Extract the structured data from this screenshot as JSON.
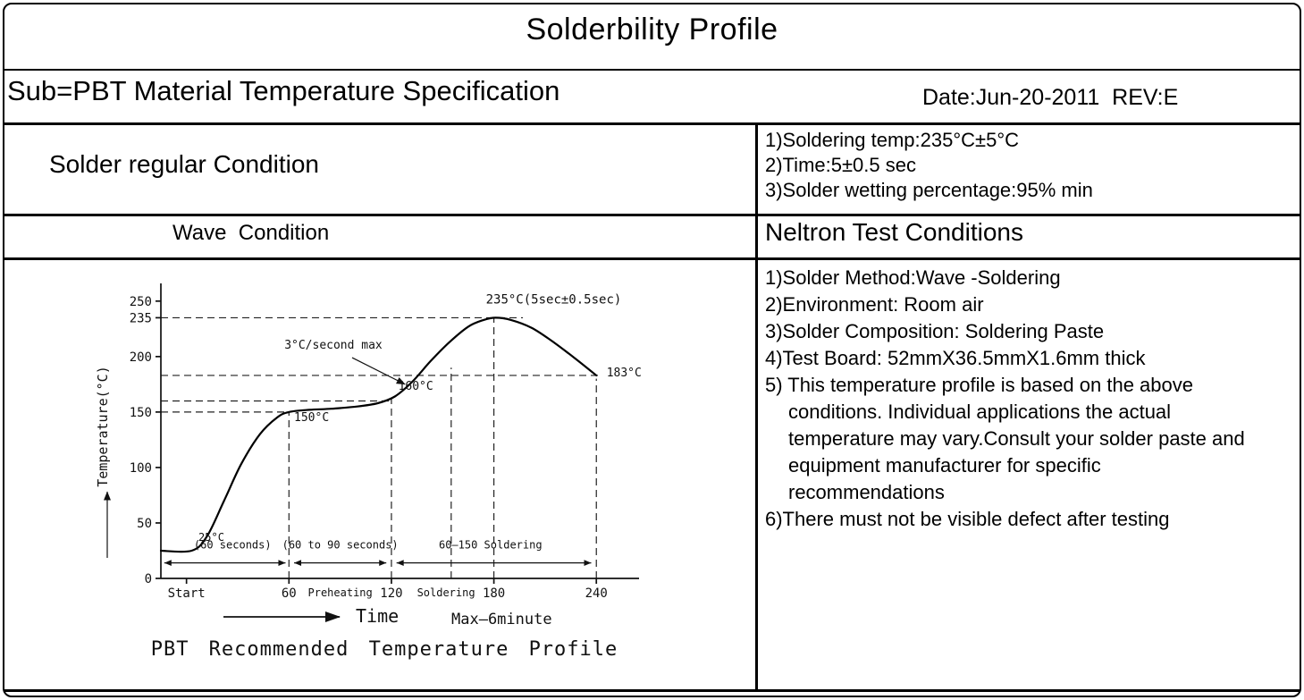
{
  "page": {
    "title": "Solderbility Profile",
    "subtitle": "Sub=PBT Material Temperature Specification",
    "date_rev": "Date:Jun-20-2011  REV:E"
  },
  "conditions": {
    "regular_label": "Solder regular Condition",
    "regular_items": [
      "1)Soldering temp:235°C±5°C",
      "2)Time:5±0.5 sec",
      "3)Solder wetting percentage:95% min"
    ],
    "wave_label": "Wave  Condition",
    "test_header": "Neltron Test Conditions",
    "test_items": [
      "1)Solder Method:Wave -Soldering",
      "2)Environment: Room air",
      "3)Solder Composition: Soldering Paste",
      "4)Test Board: 52mmX36.5mmX1.6mm thick",
      "5) This temperature profile is based on the above conditions. Individual applications the actual temperature may vary.Consult your solder paste and equipment manufacturer for specific recommendations",
      "6)There must not be visible defect after testing"
    ]
  },
  "chart_data": {
    "type": "line",
    "title": "PBT Recommended Temperature Profile",
    "xlabel": "Time",
    "xlabel_note": "Max–6minute",
    "ylabel": "Temperature(°C)",
    "xlim": [
      -15,
      265
    ],
    "ylim": [
      0,
      270
    ],
    "x_ticks": [
      {
        "x": 0,
        "label": "Start"
      },
      {
        "x": 60,
        "label": "60"
      },
      {
        "x": 120,
        "label": "120"
      },
      {
        "x": 180,
        "label": "180"
      },
      {
        "x": 240,
        "label": "240"
      }
    ],
    "zone_labels": [
      {
        "x": 90,
        "label": "Preheating"
      },
      {
        "x": 152,
        "label": "Soldering"
      }
    ],
    "y_ticks": [
      0,
      50,
      100,
      150,
      200,
      235,
      250
    ],
    "curve_points": [
      [
        -15,
        25
      ],
      [
        3,
        25
      ],
      [
        12,
        38
      ],
      [
        22,
        70
      ],
      [
        32,
        103
      ],
      [
        43,
        130
      ],
      [
        53,
        145
      ],
      [
        60,
        150
      ],
      [
        72,
        152
      ],
      [
        85,
        153
      ],
      [
        100,
        155
      ],
      [
        112,
        158
      ],
      [
        122,
        164
      ],
      [
        132,
        177
      ],
      [
        143,
        196
      ],
      [
        154,
        213
      ],
      [
        165,
        227
      ],
      [
        174,
        233
      ],
      [
        181,
        235
      ],
      [
        190,
        233
      ],
      [
        202,
        226
      ],
      [
        214,
        214
      ],
      [
        227,
        199
      ],
      [
        240,
        183
      ]
    ],
    "dashed_h": [
      {
        "y": 235,
        "x1": -15,
        "x2": 197
      },
      {
        "y": 183,
        "x1": -15,
        "x2": 243
      },
      {
        "y": 160,
        "x1": -15,
        "x2": 120
      },
      {
        "y": 150,
        "x1": -15,
        "x2": 58
      }
    ],
    "dashed_v": [
      {
        "x": 60,
        "y1": 0,
        "y2": 150
      },
      {
        "x": 120,
        "y1": 0,
        "y2": 163
      },
      {
        "x": 155,
        "y1": 0,
        "y2": 190
      },
      {
        "x": 180,
        "y1": 0,
        "y2": 235
      },
      {
        "x": 240,
        "y1": 0,
        "y2": 180
      }
    ],
    "point_labels": [
      {
        "x": 215,
        "y": 248,
        "text": "235°C(5sec±0.5sec)",
        "anchor": "middle",
        "fs": 14
      },
      {
        "x": 246,
        "y": 182,
        "text": "183°C",
        "anchor": "start",
        "fs": 13
      },
      {
        "x": 124,
        "y": 170,
        "text": "160°C",
        "anchor": "start",
        "fs": 13
      },
      {
        "x": 63,
        "y": 142,
        "text": "150°C",
        "anchor": "start",
        "fs": 13
      },
      {
        "x": 7,
        "y": 34,
        "text": "25°C",
        "anchor": "start",
        "fs": 12
      }
    ],
    "slope_annotation": {
      "text": "3°C/second max",
      "tx": 86,
      "ty": 207,
      "ax1": 97,
      "ay1": 199,
      "ax2": 128,
      "ay2": 175
    },
    "range_arrows": [
      {
        "x1": -13,
        "x2": 58,
        "y": 14,
        "label": "(60 seconds)",
        "label_x": 27,
        "label_y": 27
      },
      {
        "x1": 63,
        "x2": 117,
        "y": 14,
        "label": "(60 to 90 seconds)",
        "label_x": 90,
        "label_y": 27
      },
      {
        "x1": 123,
        "x2": 237,
        "y": 14,
        "label": "60–150 Soldering",
        "label_x": 178,
        "label_y": 27
      }
    ]
  }
}
